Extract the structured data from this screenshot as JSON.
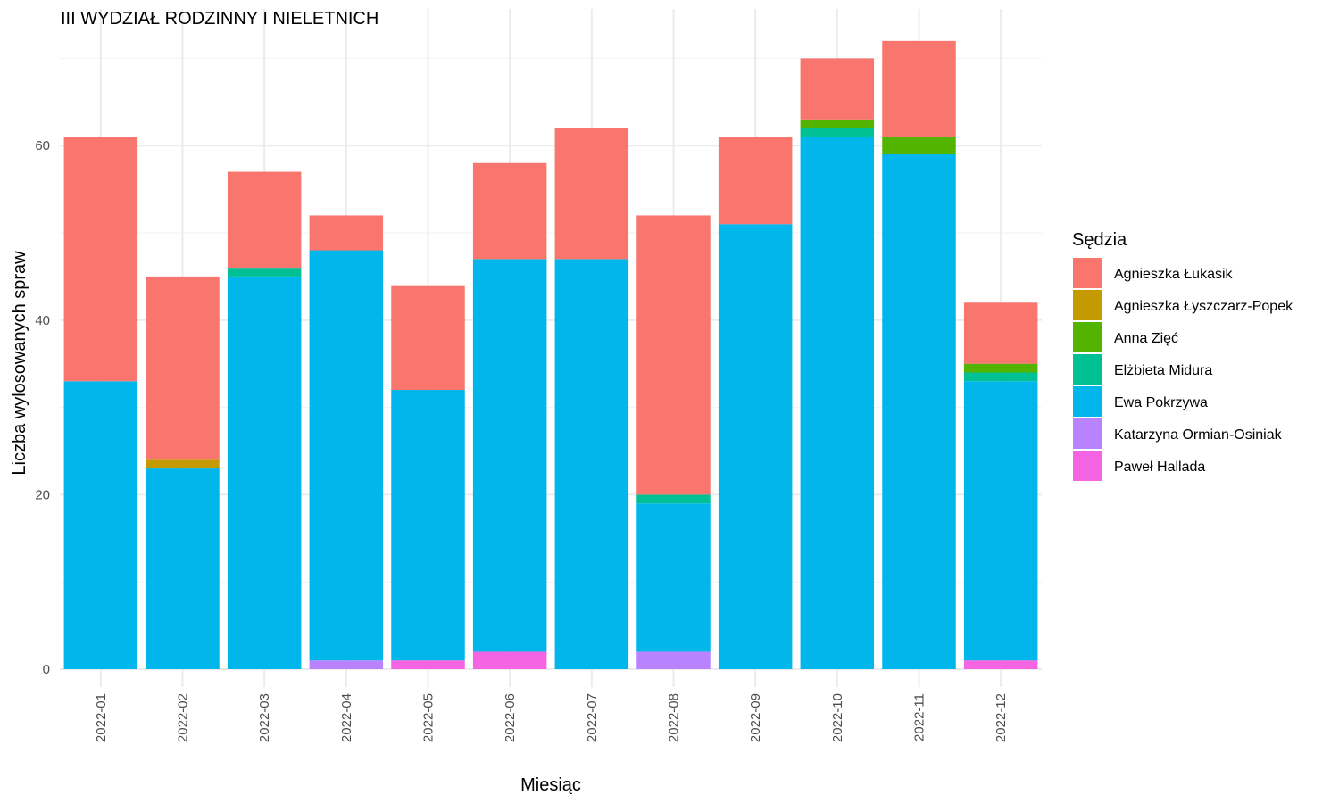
{
  "chart_data": {
    "type": "bar",
    "stacked": true,
    "title": "III WYDZIAŁ RODZINNY I NIELETNICH",
    "xlabel": "Miesiąc",
    "ylabel": "Liczba wylosowanych spraw",
    "ylim": [
      0,
      75
    ],
    "y_ticks": [
      0,
      20,
      40,
      60
    ],
    "grid": true,
    "legend_title": "Sędzia",
    "legend_position": "right",
    "categories": [
      "2022-01",
      "2022-02",
      "2022-03",
      "2022-04",
      "2022-05",
      "2022-06",
      "2022-07",
      "2022-08",
      "2022-09",
      "2022-10",
      "2022-11",
      "2022-12"
    ],
    "series": [
      {
        "name": "Paweł Hallada",
        "color": "#F564E3",
        "values": [
          0,
          0,
          0,
          0,
          1,
          2,
          0,
          0,
          0,
          0,
          0,
          1
        ]
      },
      {
        "name": "Katarzyna Ormian-Osiniak",
        "color": "#B983FF",
        "values": [
          0,
          0,
          0,
          1,
          0,
          0,
          0,
          2,
          0,
          0,
          0,
          0
        ]
      },
      {
        "name": "Ewa Pokrzywa",
        "color": "#00B6EB",
        "values": [
          33,
          23,
          45,
          47,
          31,
          45,
          47,
          17,
          51,
          61,
          59,
          32
        ]
      },
      {
        "name": "Elżbieta Midura",
        "color": "#00C094",
        "values": [
          0,
          0,
          1,
          0,
          0,
          0,
          0,
          1,
          0,
          1,
          0,
          1
        ]
      },
      {
        "name": "Anna Zięć",
        "color": "#53B400",
        "values": [
          0,
          0,
          0,
          0,
          0,
          0,
          0,
          0,
          0,
          1,
          2,
          1
        ]
      },
      {
        "name": "Agnieszka Łyszczarz-Popek",
        "color": "#C49A00",
        "values": [
          0,
          1,
          0,
          0,
          0,
          0,
          0,
          0,
          0,
          0,
          0,
          0
        ]
      },
      {
        "name": "Agnieszka Łukasik",
        "color": "#F8766D",
        "values": [
          28,
          21,
          11,
          4,
          12,
          11,
          15,
          32,
          10,
          7,
          11,
          7
        ]
      }
    ],
    "legend_order": [
      "Agnieszka Łukasik",
      "Agnieszka Łyszczarz-Popek",
      "Anna Zięć",
      "Elżbieta Midura",
      "Ewa Pokrzywa",
      "Katarzyna Ormian-Osiniak",
      "Paweł Hallada"
    ]
  }
}
